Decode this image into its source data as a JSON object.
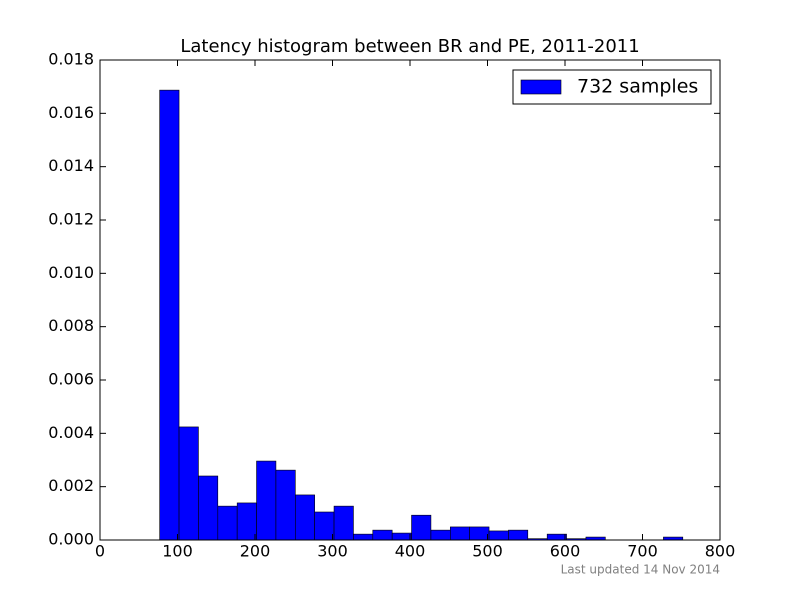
{
  "chart_data": {
    "type": "histogram",
    "title": "Latency histogram between BR and PE, 2011-2011",
    "annotation": "Last updated 14 Nov 2014",
    "bins": [
      77,
      102,
      127,
      152,
      177,
      202,
      227,
      252,
      277,
      302,
      327,
      352,
      377,
      402,
      427,
      452,
      477,
      502,
      527,
      552,
      577,
      602,
      627,
      652,
      677,
      702,
      727,
      752
    ],
    "series": [
      {
        "name": "732 samples",
        "color": "#0000ff",
        "values": [
          0.01687,
          0.00424,
          0.0024,
          0.00127,
          0.00139,
          0.00296,
          0.00262,
          0.00169,
          0.00105,
          0.00127,
          0.00022,
          0.00037,
          0.00026,
          0.00093,
          0.00037,
          0.00049,
          0.00049,
          0.00034,
          0.00037,
          5e-05,
          0.00022,
          5e-05,
          0.00011,
          0,
          0,
          0,
          0.00011
        ]
      }
    ],
    "xlim": [
      0,
      800
    ],
    "xticks": [
      0,
      100,
      200,
      300,
      400,
      500,
      600,
      700,
      800
    ],
    "ylim": [
      0,
      0.018
    ],
    "yticks": [
      {
        "value": 0,
        "label": "0.000"
      },
      {
        "value": 0.002,
        "label": "0.002"
      },
      {
        "value": 0.004,
        "label": "0.004"
      },
      {
        "value": 0.006,
        "label": "0.006"
      },
      {
        "value": 0.008,
        "label": "0.008"
      },
      {
        "value": 0.01,
        "label": "0.010"
      },
      {
        "value": 0.012,
        "label": "0.012"
      },
      {
        "value": 0.014,
        "label": "0.014"
      },
      {
        "value": 0.016,
        "label": "0.016"
      },
      {
        "value": 0.018,
        "label": "0.018"
      }
    ],
    "grid": false,
    "legend": "upper right"
  }
}
